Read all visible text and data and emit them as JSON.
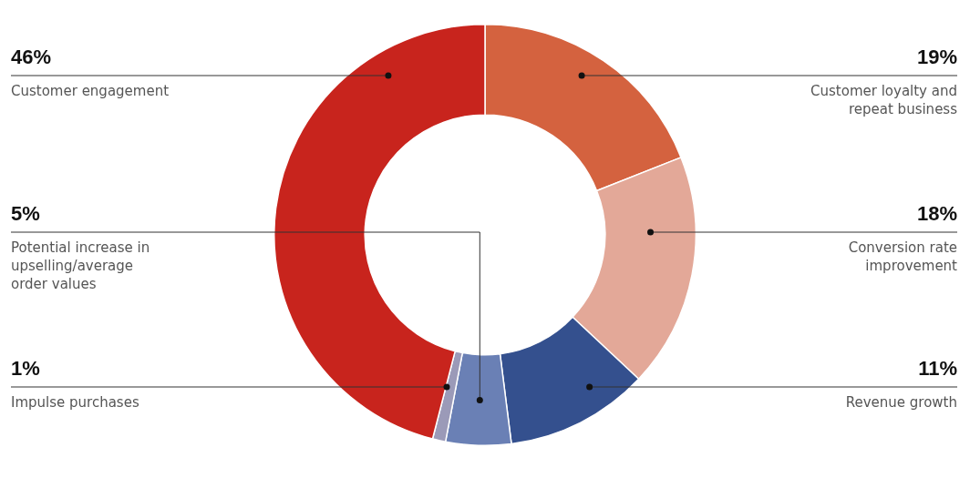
{
  "chart_data": {
    "type": "donut",
    "categories": [
      "Customer loyalty and repeat business",
      "Conversion rate improvement",
      "Revenue growth",
      "Potential increase in upselling/average order values",
      "Impulse purchases",
      "Customer engagement"
    ],
    "values": [
      19,
      18,
      11,
      5,
      1,
      46
    ],
    "value_labels": [
      "19%",
      "18%",
      "11%",
      "5%",
      "1%",
      "46%"
    ],
    "colors": [
      "#d4623f",
      "#e3a898",
      "#34508e",
      "#6a80b5",
      "#9b9ab8",
      "#c8241d"
    ],
    "legend": false
  }
}
